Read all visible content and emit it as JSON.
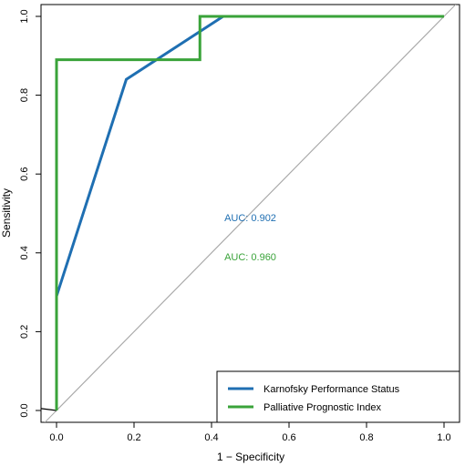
{
  "chart_data": {
    "type": "line",
    "title": "",
    "xlabel": "1 − Specificity",
    "ylabel": "Sensitivity",
    "xlim": [
      -0.04,
      1.04
    ],
    "ylim": [
      -0.03,
      1.03
    ],
    "x_ticks": [
      "0.0",
      "0.2",
      "0.4",
      "0.6",
      "0.8",
      "1.0"
    ],
    "y_ticks": [
      "0.0",
      "0.2",
      "0.4",
      "0.6",
      "0.8",
      "1.0"
    ],
    "grid": false,
    "legend_position": "bottom-right",
    "reference_line": {
      "x": [
        0,
        1
      ],
      "y": [
        0,
        1
      ],
      "color": "#aaaaaa"
    },
    "series": [
      {
        "name": "Karnofsky Performance Status",
        "color": "#1f6fb2",
        "x": [
          0.0,
          0.0,
          0.18,
          0.43,
          1.0
        ],
        "y": [
          0.0,
          0.29,
          0.84,
          1.0,
          1.0
        ],
        "auc_label": "AUC: 0.902"
      },
      {
        "name": "Palliative Prognostic Index",
        "color": "#3aa33a",
        "x": [
          0.0,
          0.0,
          0.37,
          0.37,
          1.0
        ],
        "y": [
          0.0,
          0.89,
          0.89,
          1.0,
          1.0
        ],
        "auc_label": "AUC: 0.960"
      }
    ]
  }
}
